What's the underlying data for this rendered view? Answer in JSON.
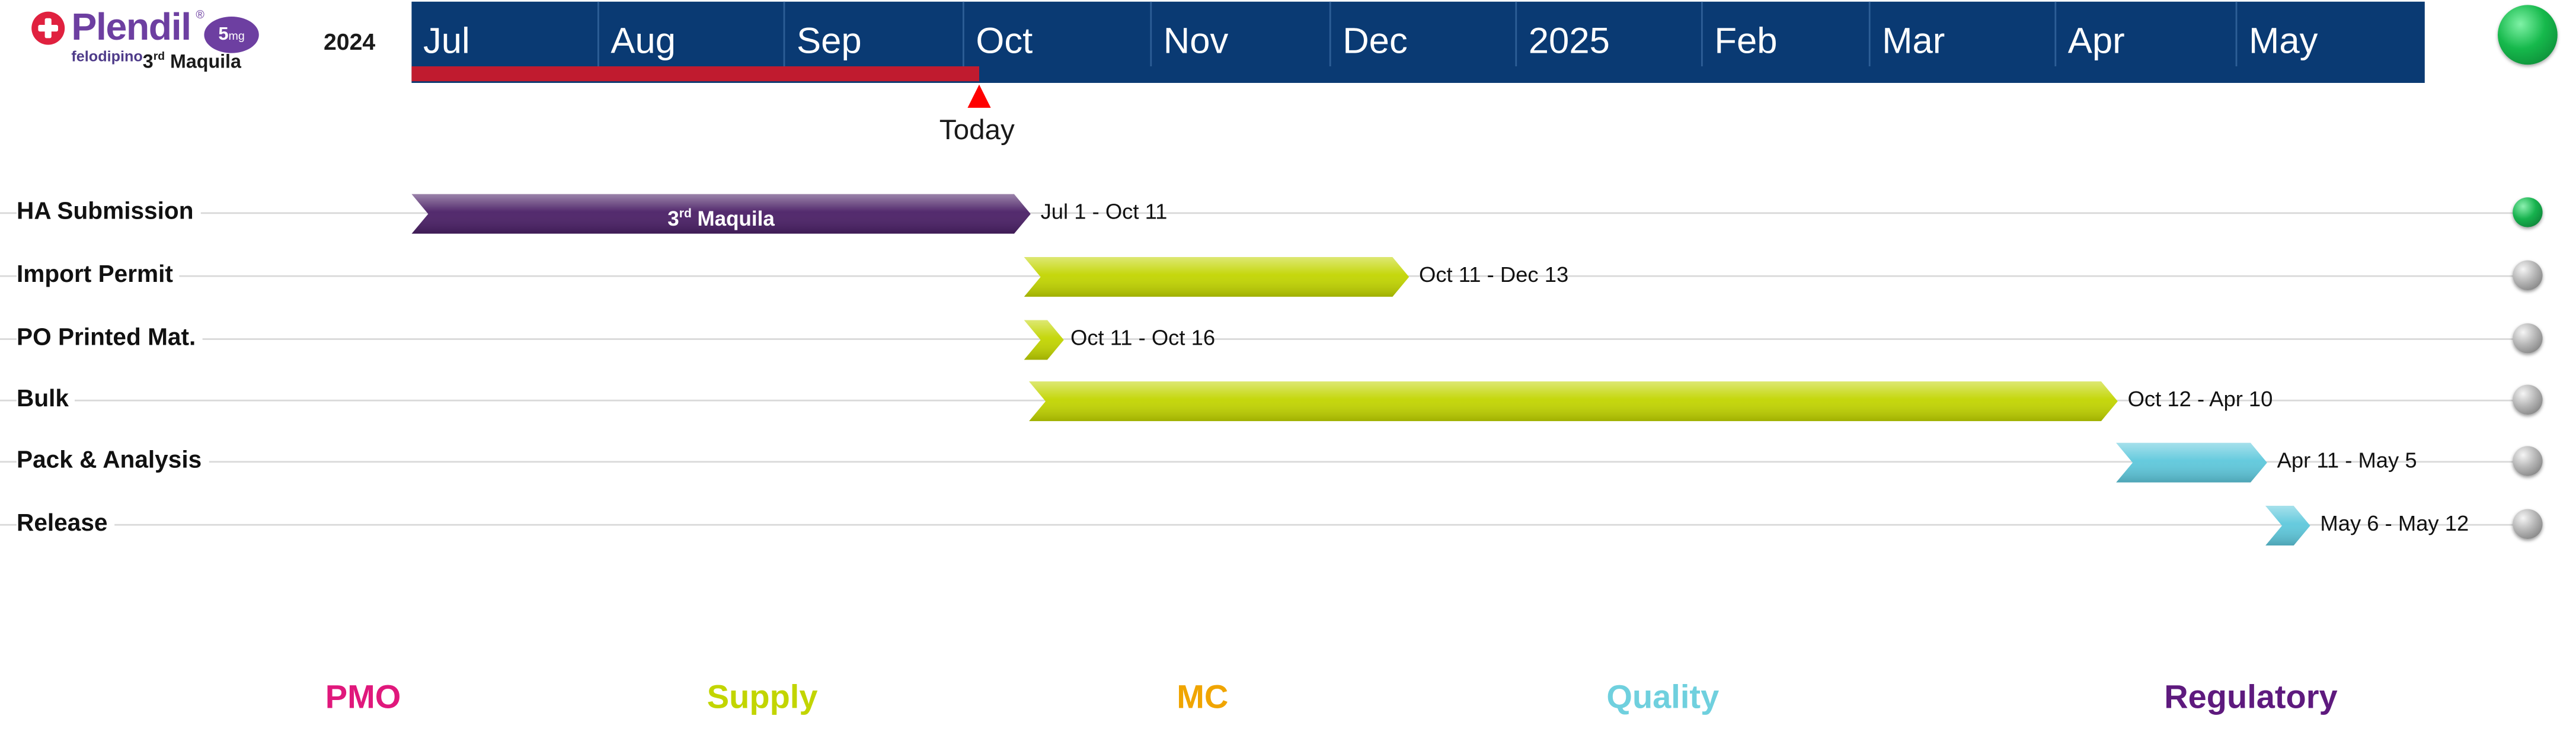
{
  "header": {
    "brand_name": "Plendil",
    "brand_reg": "®",
    "dose_number": "5",
    "dose_unit": "mg",
    "generic_name": "felodipino",
    "site_ordinal": "3",
    "site_suffix": "rd",
    "site_name": "Maquila",
    "year_label": "2024"
  },
  "timescale": {
    "months": [
      "Jul",
      "Aug",
      "Sep",
      "Oct",
      "Nov",
      "Dec",
      "2025",
      "Feb",
      "Mar",
      "Apr",
      "May"
    ],
    "elapsed_fraction": 0.282,
    "today_label": "Today",
    "bar_color": "#0a3a73",
    "elapsed_color": "#c01b2f",
    "overall_status": "green"
  },
  "tasks": [
    {
      "label": "HA Submission",
      "range": "Jul 1 - Oct 11",
      "bar_label_ordinal": "3",
      "bar_label_suffix": "rd",
      "bar_label_text": "Maquila",
      "color": "#4a1f66",
      "status": "green"
    },
    {
      "label": "Import Permit",
      "range": "Oct 11 - Dec 13",
      "color": "#c2d500",
      "status": "gray"
    },
    {
      "label": "PO Printed Mat.",
      "range": "Oct 11 - Oct 16",
      "color": "#c2d500",
      "status": "gray"
    },
    {
      "label": "Bulk",
      "range": "Oct 12 - Apr 10",
      "color": "#c2d500",
      "status": "gray"
    },
    {
      "label": "Pack & Analysis",
      "range": "Apr 11 - May 5",
      "color": "#5ec8dc",
      "status": "gray"
    },
    {
      "label": "Release",
      "range": "May 6 - May 12",
      "color": "#5ec8dc",
      "status": "gray"
    }
  ],
  "legend": [
    {
      "label": "PMO",
      "color": "#e0187c"
    },
    {
      "label": "Supply",
      "color": "#c2d500"
    },
    {
      "label": "MC",
      "color": "#f0a500"
    },
    {
      "label": "Quality",
      "color": "#6fd0de"
    },
    {
      "label": "Regulatory",
      "color": "#5e1a7e"
    }
  ]
}
